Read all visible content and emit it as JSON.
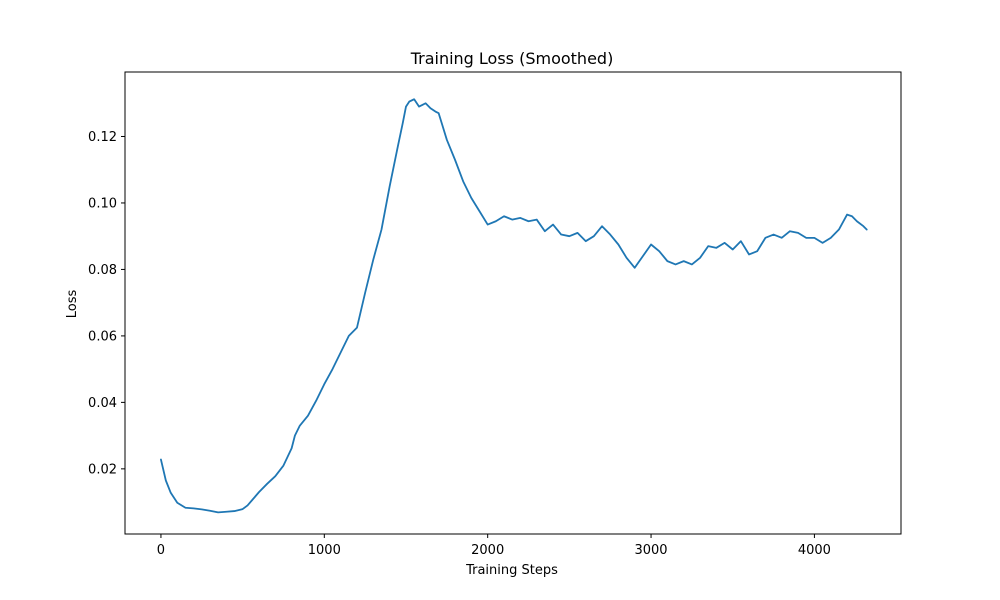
{
  "chart_data": {
    "type": "line",
    "title": "Training Loss (Smoothed)",
    "xlabel": "Training Steps",
    "ylabel": "Loss",
    "xlim": [
      -220,
      4530
    ],
    "ylim": [
      0.0004,
      0.1394
    ],
    "xticks": [
      0,
      1000,
      2000,
      3000,
      4000
    ],
    "xtick_labels": [
      "0",
      "1000",
      "2000",
      "3000",
      "4000"
    ],
    "yticks": [
      0.02,
      0.04,
      0.06,
      0.08,
      0.1,
      0.12
    ],
    "ytick_labels": [
      "0.02",
      "0.04",
      "0.06",
      "0.08",
      "0.10",
      "0.12"
    ],
    "grid": false,
    "line_color": "#1f77b4",
    "series": [
      {
        "x": [
          0,
          30,
          60,
          100,
          150,
          200,
          250,
          300,
          350,
          400,
          450,
          500,
          530,
          560,
          600,
          650,
          700,
          750,
          800,
          820,
          850,
          900,
          950,
          1000,
          1050,
          1100,
          1150,
          1200,
          1250,
          1300,
          1350,
          1400,
          1450,
          1480,
          1500,
          1520,
          1550,
          1580,
          1600,
          1620,
          1650,
          1680,
          1700,
          1750,
          1800,
          1850,
          1900,
          1950,
          2000,
          2050,
          2100,
          2150,
          2200,
          2250,
          2300,
          2350,
          2400,
          2450,
          2500,
          2550,
          2600,
          2650,
          2700,
          2750,
          2800,
          2850,
          2900,
          2950,
          3000,
          3050,
          3100,
          3150,
          3200,
          3250,
          3300,
          3350,
          3400,
          3450,
          3500,
          3550,
          3600,
          3650,
          3700,
          3750,
          3800,
          3850,
          3900,
          3950,
          4000,
          4050,
          4100,
          4150,
          4200,
          4230,
          4260,
          4300,
          4320
        ],
        "y": [
          0.0228,
          0.0165,
          0.0128,
          0.0098,
          0.0083,
          0.0081,
          0.0078,
          0.0074,
          0.0069,
          0.0071,
          0.0073,
          0.0079,
          0.009,
          0.0107,
          0.013,
          0.0155,
          0.0178,
          0.021,
          0.0262,
          0.03,
          0.033,
          0.036,
          0.0405,
          0.0455,
          0.05,
          0.055,
          0.06,
          0.0625,
          0.073,
          0.083,
          0.092,
          0.105,
          0.117,
          0.124,
          0.129,
          0.1305,
          0.1312,
          0.129,
          0.1295,
          0.13,
          0.1285,
          0.1275,
          0.127,
          0.119,
          0.113,
          0.1065,
          0.1015,
          0.0975,
          0.0935,
          0.0945,
          0.096,
          0.095,
          0.0955,
          0.0945,
          0.095,
          0.0915,
          0.0935,
          0.0905,
          0.09,
          0.091,
          0.0885,
          0.09,
          0.093,
          0.0905,
          0.0875,
          0.0835,
          0.0805,
          0.084,
          0.0875,
          0.0855,
          0.0825,
          0.0815,
          0.0825,
          0.0815,
          0.0835,
          0.087,
          0.0865,
          0.088,
          0.086,
          0.0885,
          0.0845,
          0.0855,
          0.0895,
          0.0905,
          0.0895,
          0.0915,
          0.091,
          0.0895,
          0.0895,
          0.088,
          0.0895,
          0.092,
          0.0965,
          0.096,
          0.0945,
          0.093,
          0.092
        ]
      }
    ]
  }
}
